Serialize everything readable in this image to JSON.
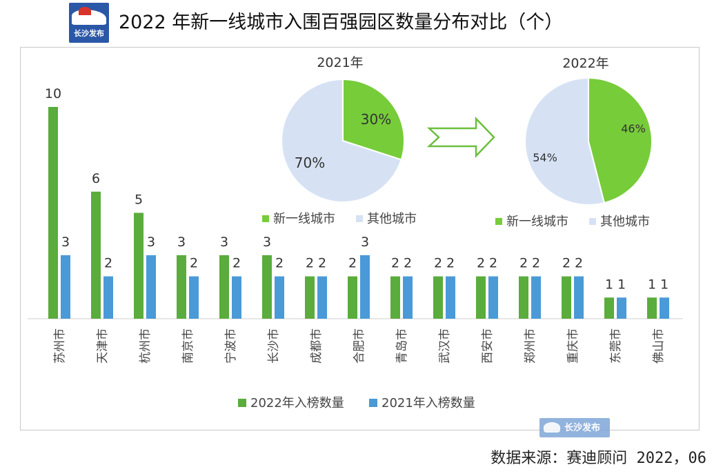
{
  "header": {
    "logo_text": "长沙发布",
    "title": "2022 年新一线城市入围百强园区数量分布对比（个）"
  },
  "footer": {
    "source": "数据来源：赛迪顾问 2022，06",
    "watermark_text": "长沙发布"
  },
  "colors": {
    "green": "#5aac3c",
    "blue": "#4a9ad8",
    "pie_green": "#77cc3a",
    "pie_light": "#d6e2f4",
    "arrow": "#6bbf3b"
  },
  "chart_data": [
    {
      "type": "bar",
      "categories": [
        "苏州市",
        "天津市",
        "杭州市",
        "南京市",
        "宁波市",
        "长沙市",
        "成都市",
        "合肥市",
        "青岛市",
        "武汉市",
        "西安市",
        "郑州市",
        "重庆市",
        "东莞市",
        "佛山市"
      ],
      "series": [
        {
          "name": "2022年入榜数量",
          "values": [
            10,
            6,
            5,
            3,
            3,
            3,
            2,
            2,
            2,
            2,
            2,
            2,
            2,
            1,
            1
          ]
        },
        {
          "name": "2021年入榜数量",
          "values": [
            3,
            2,
            3,
            2,
            2,
            2,
            2,
            3,
            2,
            2,
            2,
            2,
            2,
            1,
            1
          ]
        }
      ],
      "ylim": [
        0,
        11
      ],
      "legend": "bottom"
    },
    {
      "type": "pie",
      "title": "2021年",
      "labels": [
        "新一线城市",
        "其他城市"
      ],
      "values": [
        30,
        70
      ],
      "value_labels": [
        "30%",
        "70%"
      ],
      "legend": "bottom"
    },
    {
      "type": "pie",
      "title": "2022年",
      "labels": [
        "新一线城市",
        "其他城市"
      ],
      "values": [
        46,
        54
      ],
      "value_labels": [
        "46%",
        "54%"
      ],
      "legend": "bottom"
    }
  ]
}
